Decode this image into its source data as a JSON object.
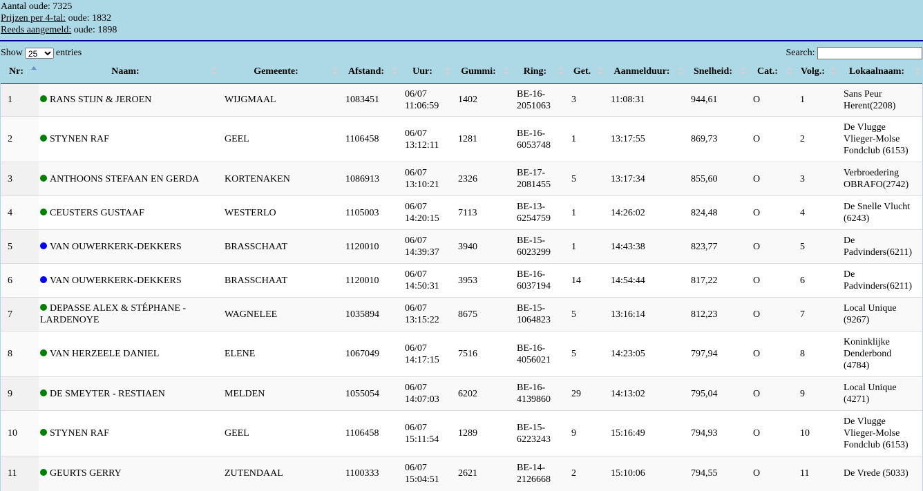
{
  "info": {
    "aantal_label": "Aantal oude:",
    "aantal_value": "7325",
    "prijzen_link": "Prijzen per 4-tal:",
    "prijzen_rest": "oude: 1832",
    "aangemeld_link": "Reeds aangemeld:",
    "aangemeld_rest": "oude: 1898"
  },
  "controls": {
    "show_label": "Show",
    "entries_value": "25",
    "entries_label": "entries",
    "search_label": "Search:"
  },
  "colors": {
    "header_bg": "#add8e6",
    "rule": "#00008b",
    "dot_green": "#008000",
    "dot_blue": "#0000ff"
  },
  "columns": [
    "Nr:",
    "Naam:",
    "Gemeente:",
    "Afstand:",
    "Uur:",
    "Gummi:",
    "Ring:",
    "Get.",
    "Aanmelduur:",
    "Snelheid:",
    "Cat.:",
    "Volg.:",
    "Lokaalnaam:"
  ],
  "rows": [
    {
      "nr": "1",
      "dot": "green",
      "naam": "RANS STIJN & JEROEN",
      "gemeente": "WIJGMAAL",
      "afstand": "1083451",
      "uur": "06/07 11:06:59",
      "gummi": "1402",
      "ring": "BE-16-2051063",
      "get": "3",
      "aanmelduur": "11:08:31",
      "snelheid": "944,61",
      "cat": "O",
      "volg": "1",
      "lokaal": "Sans Peur Herent(2208)"
    },
    {
      "nr": "2",
      "dot": "green",
      "naam": "STYNEN RAF",
      "gemeente": "GEEL",
      "afstand": "1106458",
      "uur": "06/07 13:12:11",
      "gummi": "1281",
      "ring": "BE-16-6053748",
      "get": "1",
      "aanmelduur": "13:17:55",
      "snelheid": "869,73",
      "cat": "O",
      "volg": "2",
      "lokaal": "De Vlugge Vlieger-Molse Fondclub (6153)"
    },
    {
      "nr": "3",
      "dot": "green",
      "naam": "ANTHOONS STEFAAN EN GERDA",
      "gemeente": "KORTENAKEN",
      "afstand": "1086913",
      "uur": "06/07 13:10:21",
      "gummi": "2326",
      "ring": "BE-17-2081455",
      "get": "5",
      "aanmelduur": "13:17:34",
      "snelheid": "855,60",
      "cat": "O",
      "volg": "3",
      "lokaal": "Verbroedering OBRAFO(2742)"
    },
    {
      "nr": "4",
      "dot": "green",
      "naam": "CEUSTERS GUSTAAF",
      "gemeente": "WESTERLO",
      "afstand": "1105003",
      "uur": "06/07 14:20:15",
      "gummi": "7113",
      "ring": "BE-13-6254759",
      "get": "1",
      "aanmelduur": "14:26:02",
      "snelheid": "824,48",
      "cat": "O",
      "volg": "4",
      "lokaal": "De Snelle Vlucht (6243)"
    },
    {
      "nr": "5",
      "dot": "blue",
      "naam": "VAN OUWERKERK-DEKKERS",
      "gemeente": "BRASSCHAAT",
      "afstand": "1120010",
      "uur": "06/07 14:39:37",
      "gummi": "3940",
      "ring": "BE-15-6023299",
      "get": "1",
      "aanmelduur": "14:43:38",
      "snelheid": "823,77",
      "cat": "O",
      "volg": "5",
      "lokaal": "De Padvinders(6211)"
    },
    {
      "nr": "6",
      "dot": "blue",
      "naam": "VAN OUWERKERK-DEKKERS",
      "gemeente": "BRASSCHAAT",
      "afstand": "1120010",
      "uur": "06/07 14:50:31",
      "gummi": "3953",
      "ring": "BE-16-6037194",
      "get": "14",
      "aanmelduur": "14:54:44",
      "snelheid": "817,22",
      "cat": "O",
      "volg": "6",
      "lokaal": "De Padvinders(6211)"
    },
    {
      "nr": "7",
      "dot": "green",
      "naam": "DEPASSE ALEX & STÉPHANE - LARDENOYE",
      "gemeente": "WAGNELEE",
      "afstand": "1035894",
      "uur": "06/07 13:15:22",
      "gummi": "8675",
      "ring": "BE-15-1064823",
      "get": "5",
      "aanmelduur": "13:16:14",
      "snelheid": "812,23",
      "cat": "O",
      "volg": "7",
      "lokaal": "Local Unique (9267)"
    },
    {
      "nr": "8",
      "dot": "green",
      "naam": "VAN HERZEELE DANIEL",
      "gemeente": "ELENE",
      "afstand": "1067049",
      "uur": "06/07 14:17:15",
      "gummi": "7516",
      "ring": "BE-16-4056021",
      "get": "5",
      "aanmelduur": "14:23:05",
      "snelheid": "797,94",
      "cat": "O",
      "volg": "8",
      "lokaal": "Koninklijke Denderbond (4784)"
    },
    {
      "nr": "9",
      "dot": "green",
      "naam": "DE SMEYTER - RESTIAEN",
      "gemeente": "MELDEN",
      "afstand": "1055054",
      "uur": "06/07 14:07:03",
      "gummi": "6202",
      "ring": "BE-16-4139860",
      "get": "29",
      "aanmelduur": "14:13:02",
      "snelheid": "795,04",
      "cat": "O",
      "volg": "9",
      "lokaal": "Local Unique (4271)"
    },
    {
      "nr": "10",
      "dot": "green",
      "naam": "STYNEN RAF",
      "gemeente": "GEEL",
      "afstand": "1106458",
      "uur": "06/07 15:11:54",
      "gummi": "1289",
      "ring": "BE-15-6223243",
      "get": "9",
      "aanmelduur": "15:16:49",
      "snelheid": "794,93",
      "cat": "O",
      "volg": "10",
      "lokaal": "De Vlugge Vlieger-Molse Fondclub (6153)"
    },
    {
      "nr": "11",
      "dot": "green",
      "naam": "GEURTS GERRY",
      "gemeente": "ZUTENDAAL",
      "afstand": "1100333",
      "uur": "06/07 15:04:51",
      "gummi": "2621",
      "ring": "BE-14-2126668",
      "get": "2",
      "aanmelduur": "15:10:06",
      "snelheid": "794,55",
      "cat": "O",
      "volg": "11",
      "lokaal": "De Vrede (5033)"
    }
  ]
}
